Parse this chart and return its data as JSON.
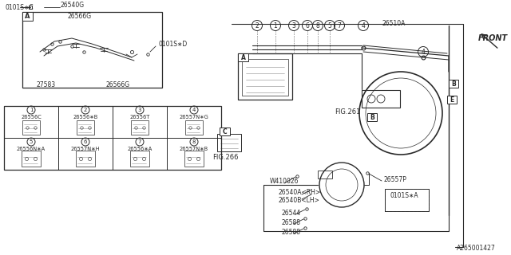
{
  "bg_color": "#ffffff",
  "line_color": "#2a2a2a",
  "diagram_id": "A265001427",
  "part_labels": {
    "main_pipe": "26510A",
    "fig261": "FIG.261",
    "fig266": "FIG.266",
    "front": "FRONT",
    "w410026": "W410026",
    "p26557P": "26557P",
    "p26540A": "26540A<RH>",
    "p26540B": "26540B<LH>",
    "p26544": "26544",
    "p26588a": "26588",
    "p26588b": "26588",
    "s0101SA": "0101S∗A",
    "s0101SC": "0101S∗C",
    "s0101SD": "0101S∗D",
    "p26540G": "26540G",
    "p26566G_top": "26566G",
    "p26566G_bot": "26566G",
    "p27583": "27583"
  },
  "table_items": [
    {
      "num": "1",
      "code": "26556C"
    },
    {
      "num": "2",
      "code": "26556∗B"
    },
    {
      "num": "3",
      "code": "26556T"
    },
    {
      "num": "4",
      "code": "26557N∗G"
    },
    {
      "num": "5",
      "code": "26556N∗A"
    },
    {
      "num": "6",
      "code": "26557N∗H"
    },
    {
      "num": "7",
      "code": "26556∗A"
    },
    {
      "num": "8",
      "code": "26557N∗B"
    }
  ]
}
